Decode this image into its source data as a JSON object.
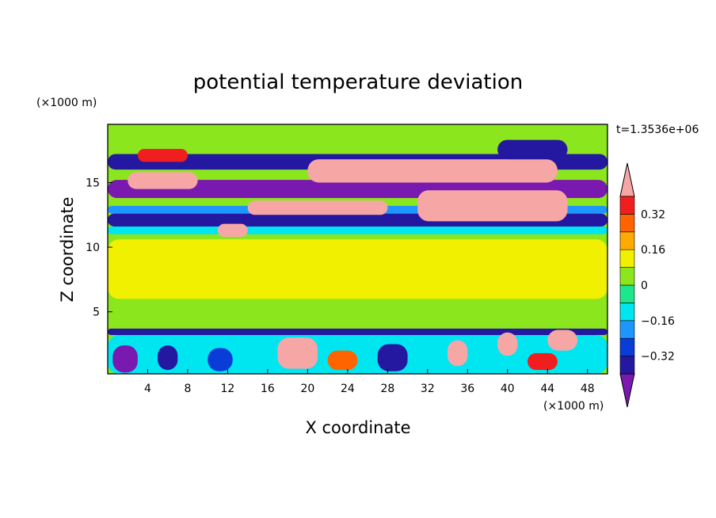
{
  "chart_data": {
    "type": "heatmap",
    "title": "potential temperature deviation",
    "xlabel": "X coordinate",
    "ylabel": "Z coordinate",
    "x_unit": "(×1000 m)",
    "y_unit": "(×1000 m)",
    "time_label": "t=1.3536e+06",
    "xlim": [
      0,
      50
    ],
    "ylim": [
      0.2,
      19.5
    ],
    "x_ticks": [
      4,
      8,
      12,
      16,
      20,
      24,
      28,
      32,
      36,
      40,
      44,
      48
    ],
    "y_ticks": [
      5,
      10,
      15
    ],
    "colorbar": {
      "levels": [
        -0.48,
        -0.4,
        -0.32,
        -0.24,
        -0.16,
        -0.08,
        0,
        0.08,
        0.16,
        0.24,
        0.32,
        0.4
      ],
      "labels": [
        "0.32",
        "0.16",
        "0",
        "−0.16",
        "−0.32"
      ],
      "label_values": [
        0.32,
        0.16,
        0,
        -0.16,
        -0.32
      ],
      "colors": [
        "#7a19b0",
        "#2418a0",
        "#0a3cd8",
        "#1e96ff",
        "#00e6f0",
        "#1ee68c",
        "#8ce61e",
        "#f0f000",
        "#ffaa00",
        "#ff6400",
        "#f01e1e",
        "#f7a6a6"
      ]
    },
    "field": {
      "background_value": 0.04,
      "features": [
        {
          "x0": 0,
          "x1": 50,
          "z0": 17.0,
          "z1": 19.5,
          "value": 0.04
        },
        {
          "x0": 0,
          "x1": 50,
          "z0": 16.0,
          "z1": 17.2,
          "value": -0.36
        },
        {
          "x0": 0,
          "x1": 50,
          "z0": 13.8,
          "z1": 15.2,
          "value": -0.44
        },
        {
          "x0": 0,
          "x1": 50,
          "z0": 11.6,
          "z1": 12.6,
          "value": -0.36
        },
        {
          "x0": 0,
          "x1": 50,
          "z0": 12.6,
          "z1": 13.2,
          "value": -0.2
        },
        {
          "x0": 0,
          "x1": 50,
          "z0": 11.0,
          "z1": 11.6,
          "value": -0.12
        },
        {
          "x0": 0,
          "x1": 50,
          "z0": 6.0,
          "z1": 10.6,
          "value": 0.1
        },
        {
          "x0": 0,
          "x1": 50,
          "z0": 3.2,
          "z1": 3.7,
          "value": -0.36
        },
        {
          "x0": 0,
          "x1": 50,
          "z0": 0.2,
          "z1": 3.2,
          "value": -0.1
        },
        {
          "x0": 2,
          "x1": 9,
          "z0": 14.5,
          "z1": 15.8,
          "value": 0.44
        },
        {
          "x0": 20,
          "x1": 45,
          "z0": 15.0,
          "z1": 16.8,
          "value": 0.44
        },
        {
          "x0": 31,
          "x1": 46,
          "z0": 12.0,
          "z1": 14.4,
          "value": 0.44
        },
        {
          "x0": 14,
          "x1": 28,
          "z0": 12.5,
          "z1": 13.6,
          "value": 0.44
        },
        {
          "x0": 11,
          "x1": 14,
          "z0": 10.8,
          "z1": 11.8,
          "value": 0.44
        },
        {
          "x0": 39,
          "x1": 46,
          "z0": 16.8,
          "z1": 18.3,
          "value": -0.4
        },
        {
          "x0": 3,
          "x1": 8,
          "z0": 16.6,
          "z1": 17.6,
          "value": 0.36
        },
        {
          "x0": 17,
          "x1": 21,
          "z0": 0.6,
          "z1": 3.0,
          "value": 0.44
        },
        {
          "x0": 34,
          "x1": 36,
          "z0": 0.8,
          "z1": 2.8,
          "value": 0.44
        },
        {
          "x0": 39,
          "x1": 41,
          "z0": 1.6,
          "z1": 3.4,
          "value": 0.44
        },
        {
          "x0": 44,
          "x1": 47,
          "z0": 2.0,
          "z1": 3.6,
          "value": 0.44
        },
        {
          "x0": 0.5,
          "x1": 3,
          "z0": 0.3,
          "z1": 2.4,
          "value": -0.42
        },
        {
          "x0": 5,
          "x1": 7,
          "z0": 0.5,
          "z1": 2.4,
          "value": -0.36
        },
        {
          "x0": 10,
          "x1": 12.5,
          "z0": 0.4,
          "z1": 2.2,
          "value": -0.3
        },
        {
          "x0": 22,
          "x1": 25,
          "z0": 0.5,
          "z1": 2.0,
          "value": 0.3
        },
        {
          "x0": 27,
          "x1": 30,
          "z0": 0.4,
          "z1": 2.5,
          "value": -0.38
        },
        {
          "x0": 42,
          "x1": 45,
          "z0": 0.5,
          "z1": 1.8,
          "value": 0.38
        },
        {
          "x0": 24,
          "x1": 36,
          "z0": 7.5,
          "z1": 10.2,
          "value": 0.12
        }
      ]
    }
  }
}
